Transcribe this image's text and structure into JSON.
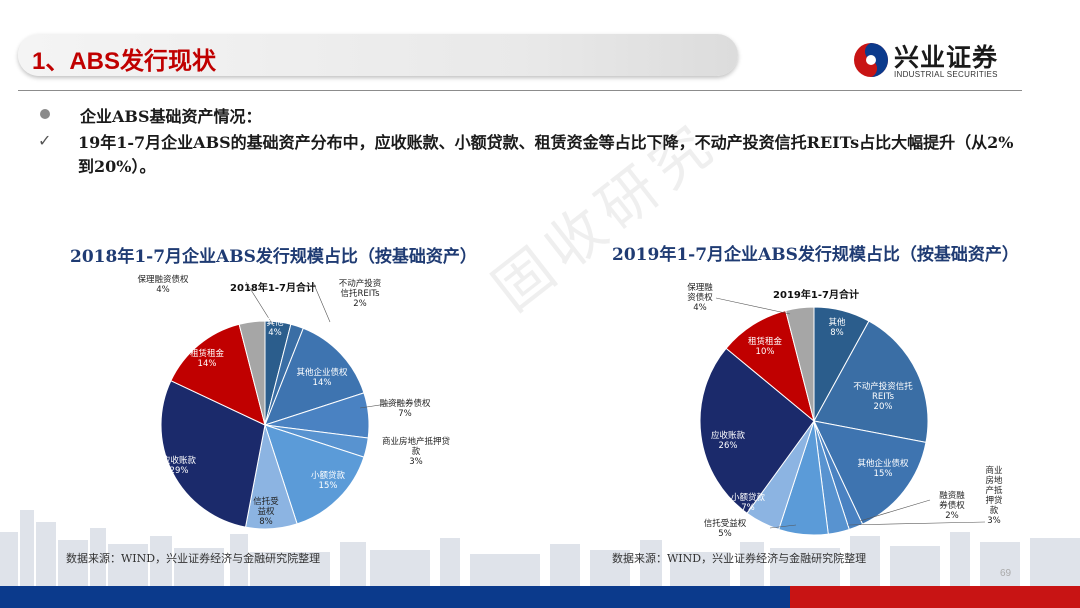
{
  "header": {
    "title": "1、ABS发行现状",
    "logo_cn": "兴业证券",
    "logo_en": "INDUSTRIAL SECURITIES"
  },
  "watermark": "固收研究",
  "bullet": "企业ABS基础资产情况：",
  "check_mark": "✓",
  "paragraph": "19年1-7月企业ABS的基础资产分布中，应收账款、小额贷款、租赁资金等占比下降，不动产投资信托REITs占比大幅提升（从2%到20%）。",
  "charts": [
    {
      "title": "2018年1-7月企业ABS发行规模占比（按基础资产）",
      "center_label": "2018年1-7月合计",
      "source": "数据来源：WIND，兴业证券经济与金融研究院整理"
    },
    {
      "title": "2019年1-7月企业ABS发行规模占比（按基础资产）",
      "center_label": "2019年1-7月合计",
      "source": "数据来源：WIND，兴业证券经济与金融研究院整理"
    }
  ],
  "chart_data": [
    {
      "type": "pie",
      "title": "2018年1-7月合计",
      "slices": [
        {
          "name": "其他",
          "value": 4,
          "color": "#2b5d8c"
        },
        {
          "name": "不动产投资信托REITs",
          "value": 2,
          "color": "#3a6ea5"
        },
        {
          "name": "其他企业债权",
          "value": 14,
          "color": "#3e74b0"
        },
        {
          "name": "融资融券债权",
          "value": 7,
          "color": "#4a82c2"
        },
        {
          "name": "商业房地产抵押贷款",
          "value": 3,
          "color": "#5893d0"
        },
        {
          "name": "小额贷款",
          "value": 15,
          "color": "#5b9bd8"
        },
        {
          "name": "信托受益权",
          "value": 8,
          "color": "#8cb4e2"
        },
        {
          "name": "应收账款",
          "value": 29,
          "color": "#1b2a6b"
        },
        {
          "name": "租赁租金",
          "value": 14,
          "color": "#c00000"
        },
        {
          "name": "保理融资债权",
          "value": 4,
          "color": "#a6a6a6"
        }
      ]
    },
    {
      "type": "pie",
      "title": "2019年1-7月合计",
      "slices": [
        {
          "name": "其他",
          "value": 8,
          "color": "#2b5d8c"
        },
        {
          "name": "不动产投资信托REITs",
          "value": 20,
          "color": "#3a6ea5"
        },
        {
          "name": "其他企业债权",
          "value": 15,
          "color": "#3e74b0"
        },
        {
          "name": "融资融券债权",
          "value": 2,
          "color": "#4a82c2"
        },
        {
          "name": "商业房地产抵押贷款",
          "value": 3,
          "color": "#5893d0"
        },
        {
          "name": "小额贷款",
          "value": 7,
          "color": "#5b9bd8"
        },
        {
          "name": "信托受益权",
          "value": 5,
          "color": "#8cb4e2"
        },
        {
          "name": "应收账款",
          "value": 26,
          "color": "#1b2a6b"
        },
        {
          "name": "租赁租金",
          "value": 10,
          "color": "#c00000"
        },
        {
          "name": "保理融资债权",
          "value": 4,
          "color": "#a6a6a6"
        }
      ]
    }
  ],
  "pie_labels": [
    [
      {
        "lines": [
          "其他",
          "4%"
        ]
      },
      {
        "lines": [
          "不动产投资",
          "信托REITs",
          "2%"
        ]
      },
      {
        "lines": [
          "其他企业债权",
          "14%"
        ]
      },
      {
        "lines": [
          "融资融券债权",
          "7%"
        ]
      },
      {
        "lines": [
          "商业房地产抵押贷",
          "款",
          "3%"
        ]
      },
      {
        "lines": [
          "小额贷款",
          "15%"
        ]
      },
      {
        "lines": [
          "信托受",
          "益权",
          "8%"
        ]
      },
      {
        "lines": [
          "应收账款",
          "29%"
        ]
      },
      {
        "lines": [
          "租赁租金",
          "14%"
        ]
      },
      {
        "lines": [
          "保理融资债权",
          "4%"
        ]
      }
    ],
    [
      {
        "lines": [
          "其他",
          "8%"
        ]
      },
      {
        "lines": [
          "不动产投资信托",
          "REITs",
          "20%"
        ]
      },
      {
        "lines": [
          "其他企业债权",
          "15%"
        ]
      },
      {
        "lines": [
          "融资融",
          "券债权",
          "2%"
        ]
      },
      {
        "lines": [
          "商业",
          "房地",
          "产抵",
          "押贷",
          "款",
          "3%"
        ]
      },
      {
        "lines": [
          "小额贷款",
          "7%"
        ]
      },
      {
        "lines": [
          "信托受益权",
          "5%"
        ]
      },
      {
        "lines": [
          "应收账款",
          "26%"
        ]
      },
      {
        "lines": [
          "租赁租金",
          "10%"
        ]
      },
      {
        "lines": [
          "保理融",
          "资债权",
          "4%"
        ]
      }
    ]
  ],
  "footer": {
    "page_number": "69"
  }
}
